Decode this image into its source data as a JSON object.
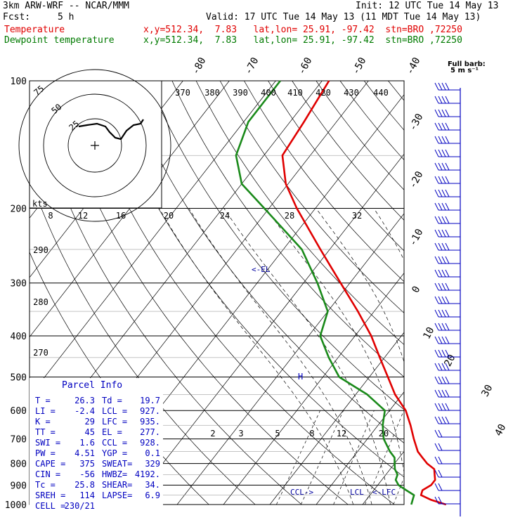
{
  "header": {
    "model": "3km ARW-WRF -- NCAR/MMM",
    "init": "Init: 12 UTC Tue 14 May 13",
    "fcst_label": "Fcst:",
    "fcst_value": "5 h",
    "valid": "Valid: 17 UTC Tue 14 May 13 (11 MDT Tue 14 May 13)",
    "temp_label": "Temperature",
    "temp_info": "x,y=512.34,  7.83   lat,lon= 25.91, -97.42  stn=BRO ,72250",
    "dew_label": "Dewpoint temperature",
    "dew_info": "x,y=512.34,  7.83   lat,lon= 25.91, -97.42  stn=BRO ,72250"
  },
  "colors": {
    "temperature": "#e00000",
    "dewpoint": "#1a8a1a",
    "parcel_box": "#0000c0",
    "barbs": "#0000c0"
  },
  "chart_data": {
    "type": "line",
    "pressure_levels": [
      "100",
      "200",
      "300",
      "400",
      "500",
      "600",
      "700",
      "800",
      "900",
      "1000"
    ],
    "isotherm_labels": [
      "-80",
      "-70",
      "-60",
      "-50",
      "-40",
      "-30",
      "-20",
      "-10",
      "0",
      "10",
      "20",
      "30",
      "40"
    ],
    "theta_labels": [
      "370",
      "380",
      "390",
      "400",
      "410",
      "420",
      "430",
      "440"
    ],
    "lower_theta_labels": [
      "290",
      "280",
      "270"
    ],
    "mixing_ratio_labels": [
      "2",
      "3",
      "5",
      "8",
      "12",
      "20"
    ],
    "barb_legend": "Full barb:",
    "barb_legend_units": "5 m s⁻¹",
    "series": [
      {
        "name": "Temperature",
        "pressure": [
          1000,
          975,
          950,
          925,
          900,
          875,
          850,
          825,
          800,
          775,
          750,
          700,
          650,
          600,
          550,
          500,
          450,
          400,
          350,
          300,
          250,
          200,
          175,
          150,
          125,
          100
        ],
        "values": [
          28.0,
          24.0,
          21.0,
          20.5,
          21.5,
          21.5,
          20.5,
          19.5,
          17.0,
          15.0,
          13.0,
          10.0,
          7.0,
          3.5,
          -1.5,
          -6.0,
          -11.0,
          -16.5,
          -23.5,
          -32.0,
          -42.0,
          -54.0,
          -60.5,
          -66.0,
          -67.0,
          -68.5
        ]
      },
      {
        "name": "Dewpoint temperature",
        "pressure": [
          1000,
          975,
          950,
          925,
          900,
          875,
          850,
          825,
          800,
          775,
          750,
          700,
          650,
          600,
          550,
          500,
          450,
          400,
          350,
          300,
          250,
          200,
          175,
          150,
          125,
          100
        ],
        "values": [
          20.5,
          20.0,
          19.5,
          17.0,
          14.5,
          13.0,
          12.5,
          11.0,
          10.0,
          9.0,
          7.0,
          3.5,
          1.0,
          -1.0,
          -7.5,
          -16.5,
          -22.0,
          -27.5,
          -30.0,
          -37.0,
          -46.0,
          -61.0,
          -70.0,
          -76.0,
          -79.0,
          -79.0
        ]
      }
    ],
    "markers": [
      "<-EL",
      "CCL->",
      "LCL",
      "<-LFC"
    ],
    "hodograph": {
      "units": "kts",
      "ring_labels": [
        "25",
        "50",
        "75"
      ],
      "speed_labels": [
        "8",
        "12",
        "16",
        "20",
        "24",
        "28",
        "32"
      ]
    }
  },
  "parcel_info": {
    "title": "Parcel Info",
    "rows": [
      [
        "T   =",
        "26.3",
        "Td  =",
        "19.7"
      ],
      [
        "LI  =",
        "-2.4",
        "LCL =",
        "927."
      ],
      [
        "K   =",
        "29",
        "LFC =",
        "935."
      ],
      [
        "TT  =",
        "45",
        "EL  =",
        "277."
      ],
      [
        "SWI =",
        "1.6",
        "CCL =",
        "928."
      ],
      [
        "PW  =",
        "4.51",
        "YGP =",
        "0.1"
      ],
      [
        "CAPE =",
        "375",
        "SWEAT=",
        "329"
      ],
      [
        "CIN  =",
        "-56",
        "HWBZ=",
        "4192."
      ],
      [
        "Tc  =",
        "25.8",
        "SHEAR=",
        "34."
      ],
      [
        "SREH =",
        "114",
        "LAPSE=",
        "6.9"
      ],
      [
        "CELL =",
        "230/21",
        "",
        ""
      ]
    ]
  }
}
